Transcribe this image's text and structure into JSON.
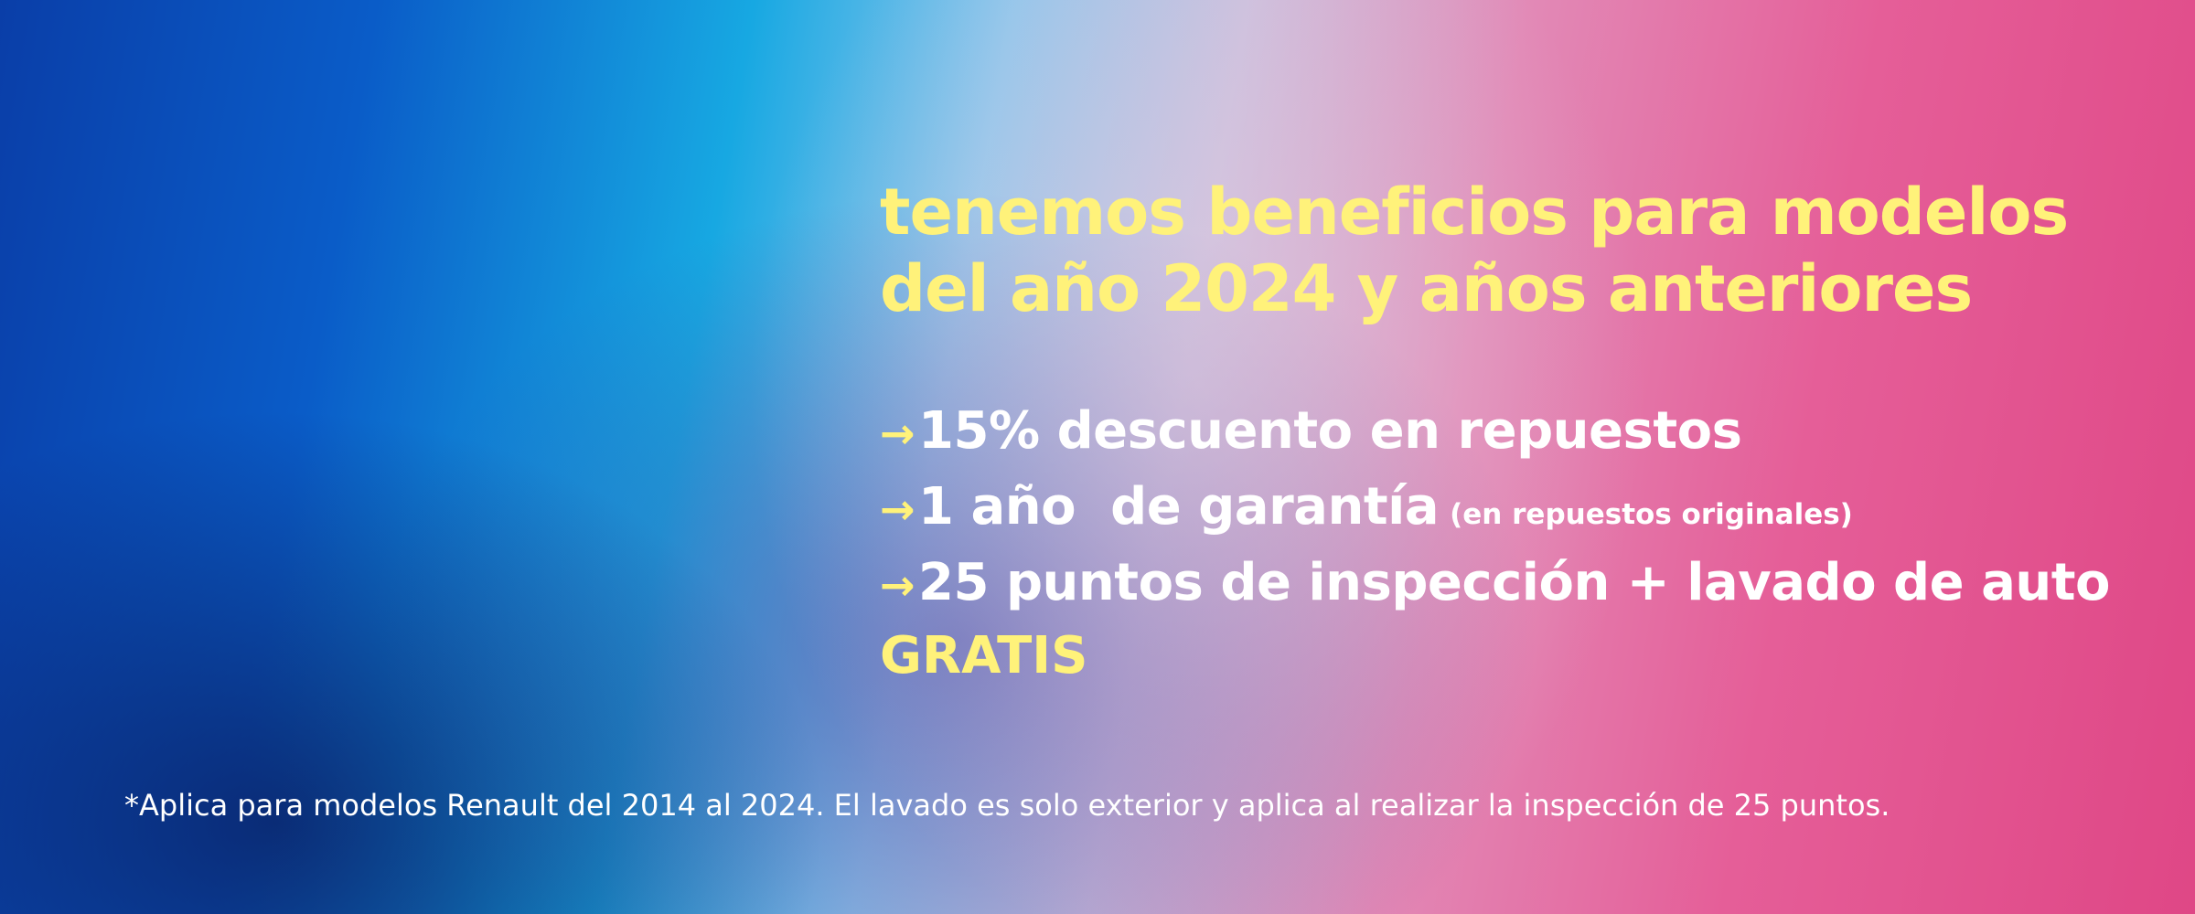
{
  "headline": {
    "line1": "tenemos beneficios para modelos",
    "line2": "del año 2024 y años anteriores"
  },
  "benefits": [
    {
      "arrow": "→",
      "text": "15% descuento en repuestos",
      "note": ""
    },
    {
      "arrow": "→",
      "text": "1 año  de garantía",
      "note": "(en repuestos originales)"
    },
    {
      "arrow": "→",
      "text": "25 puntos de inspección + lavado de auto",
      "note": ""
    }
  ],
  "free_label": "GRATIS",
  "disclaimer": "*Aplica para modelos Renault del 2014 al 2024. El lavado es solo exterior y aplica al realizar la inspección de 25 puntos.",
  "colors": {
    "accent": "#fff27a",
    "text": "#ffffff"
  }
}
